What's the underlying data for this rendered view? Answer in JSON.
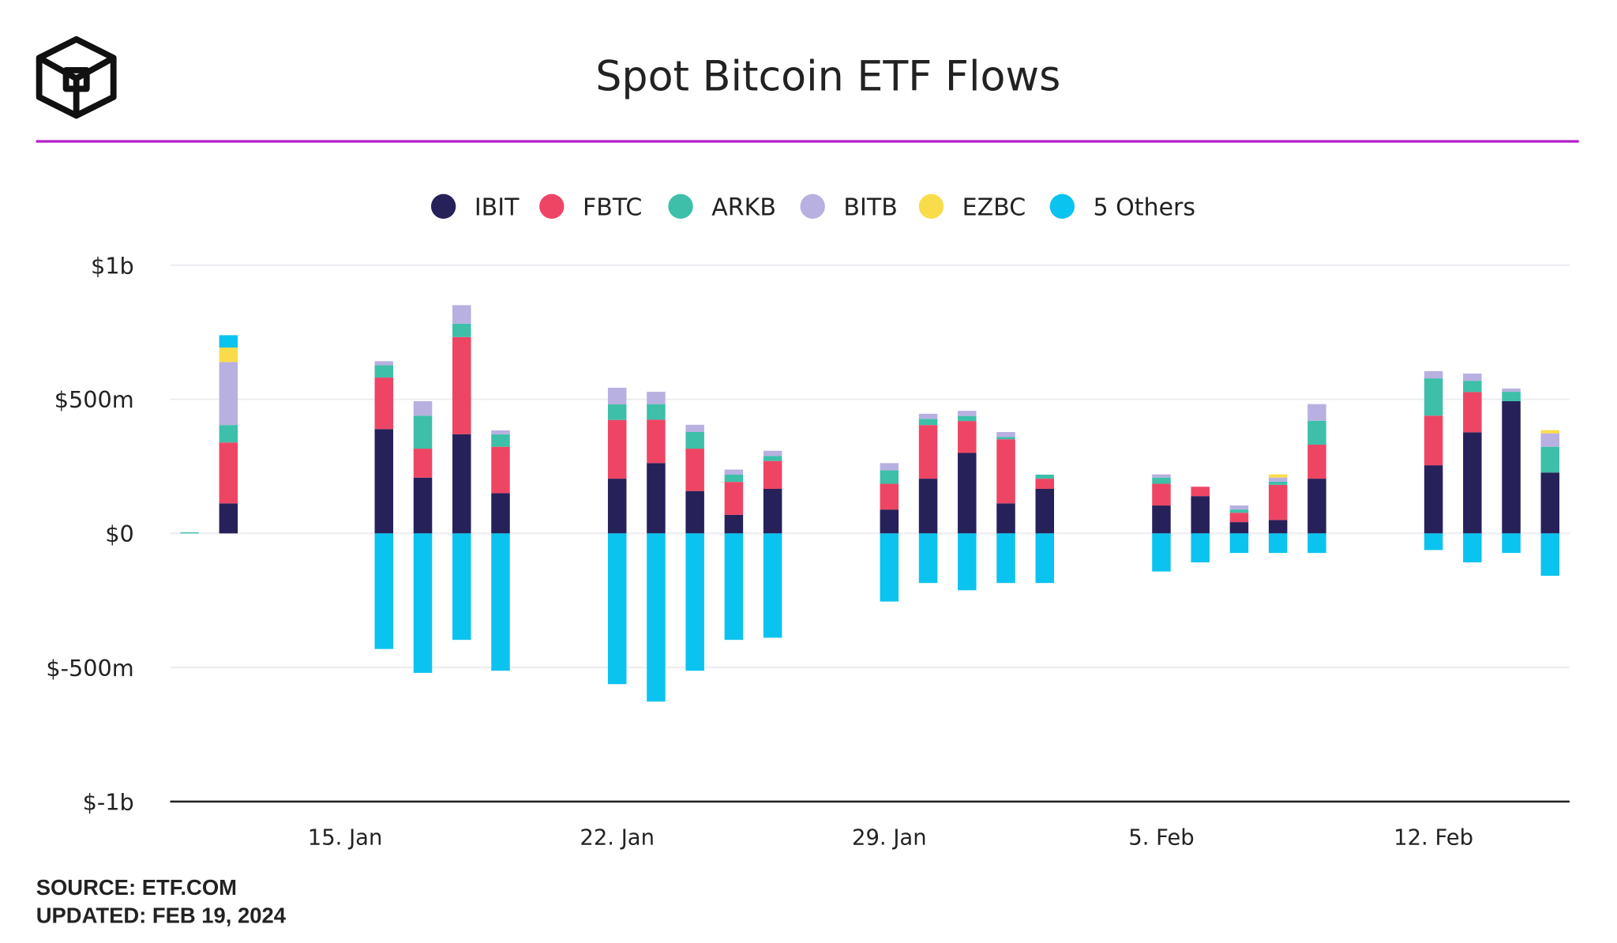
{
  "chart_data": {
    "type": "stacked-bar",
    "title": "Spot Bitcoin ETF Flows",
    "source": "SOURCE: ETF.COM",
    "updated": "UPDATED: FEB 19, 2024",
    "categories": [
      null,
      null,
      null,
      null,
      "15. Jan",
      null,
      null,
      null,
      null,
      null,
      null,
      "22. Jan",
      null,
      null,
      null,
      null,
      null,
      null,
      "29. Jan",
      null,
      null,
      null,
      null,
      null,
      null,
      "5. Feb",
      null,
      null,
      null,
      null,
      null,
      null,
      "12. Feb",
      null,
      null,
      null
    ],
    "series": [
      {
        "name": "IBIT",
        "color": "#27215a",
        "values": [
          0,
          112,
          null,
          null,
          null,
          389,
          208,
          370,
          150,
          null,
          null,
          204,
          262,
          158,
          69,
          166,
          null,
          null,
          89,
          204,
          300,
          112,
          166,
          null,
          null,
          104,
          139,
          42,
          50,
          204,
          null,
          null,
          254,
          377,
          493,
          227
        ]
      },
      {
        "name": "FBTC",
        "color": "#ef4565",
        "values": [
          0,
          227,
          null,
          null,
          null,
          192,
          108,
          362,
          173,
          null,
          null,
          219,
          162,
          158,
          123,
          104,
          null,
          null,
          96,
          200,
          119,
          239,
          38,
          null,
          null,
          81,
          35,
          35,
          131,
          127,
          null,
          null,
          185,
          150,
          0,
          0
        ]
      },
      {
        "name": "ARKB",
        "color": "#3dbfa9",
        "values": [
          4,
          65,
          null,
          null,
          null,
          46,
          123,
          50,
          46,
          null,
          null,
          58,
          58,
          62,
          27,
          19,
          null,
          null,
          50,
          23,
          19,
          8,
          15,
          null,
          null,
          23,
          0,
          12,
          12,
          89,
          null,
          null,
          139,
          42,
          35,
          96
        ]
      },
      {
        "name": "BITB",
        "color": "#b8b0e0",
        "values": [
          0,
          235,
          null,
          null,
          null,
          15,
          54,
          69,
          15,
          null,
          null,
          62,
          46,
          27,
          19,
          19,
          null,
          null,
          27,
          19,
          19,
          19,
          0,
          null,
          null,
          12,
          0,
          15,
          15,
          62,
          null,
          null,
          27,
          27,
          12,
          50
        ]
      },
      {
        "name": "EZBC",
        "color": "#f9dc4a",
        "values": [
          0,
          54,
          null,
          null,
          null,
          0,
          0,
          0,
          0,
          null,
          null,
          0,
          0,
          0,
          0,
          0,
          null,
          null,
          0,
          0,
          0,
          0,
          0,
          null,
          null,
          0,
          0,
          0,
          12,
          0,
          null,
          null,
          0,
          0,
          0,
          12
        ]
      },
      {
        "name": "5 Others",
        "color": "#0bc3ef",
        "values": [
          0,
          46,
          null,
          null,
          null,
          -431,
          -520,
          -397,
          -512,
          null,
          null,
          -562,
          -627,
          -512,
          -397,
          -389,
          null,
          null,
          -254,
          -185,
          -212,
          -185,
          -185,
          null,
          null,
          -142,
          -108,
          -73,
          -73,
          -73,
          null,
          null,
          -62,
          -108,
          -73,
          -158
        ]
      }
    ],
    "ylim": [
      -1000,
      1000
    ],
    "yticks": [
      {
        "value": -1000,
        "label": "$-1b"
      },
      {
        "value": -500,
        "label": "$-500m"
      },
      {
        "value": 0,
        "label": "$0"
      },
      {
        "value": 500,
        "label": "$500m"
      },
      {
        "value": 1000,
        "label": "$1b"
      }
    ],
    "grid": true
  }
}
